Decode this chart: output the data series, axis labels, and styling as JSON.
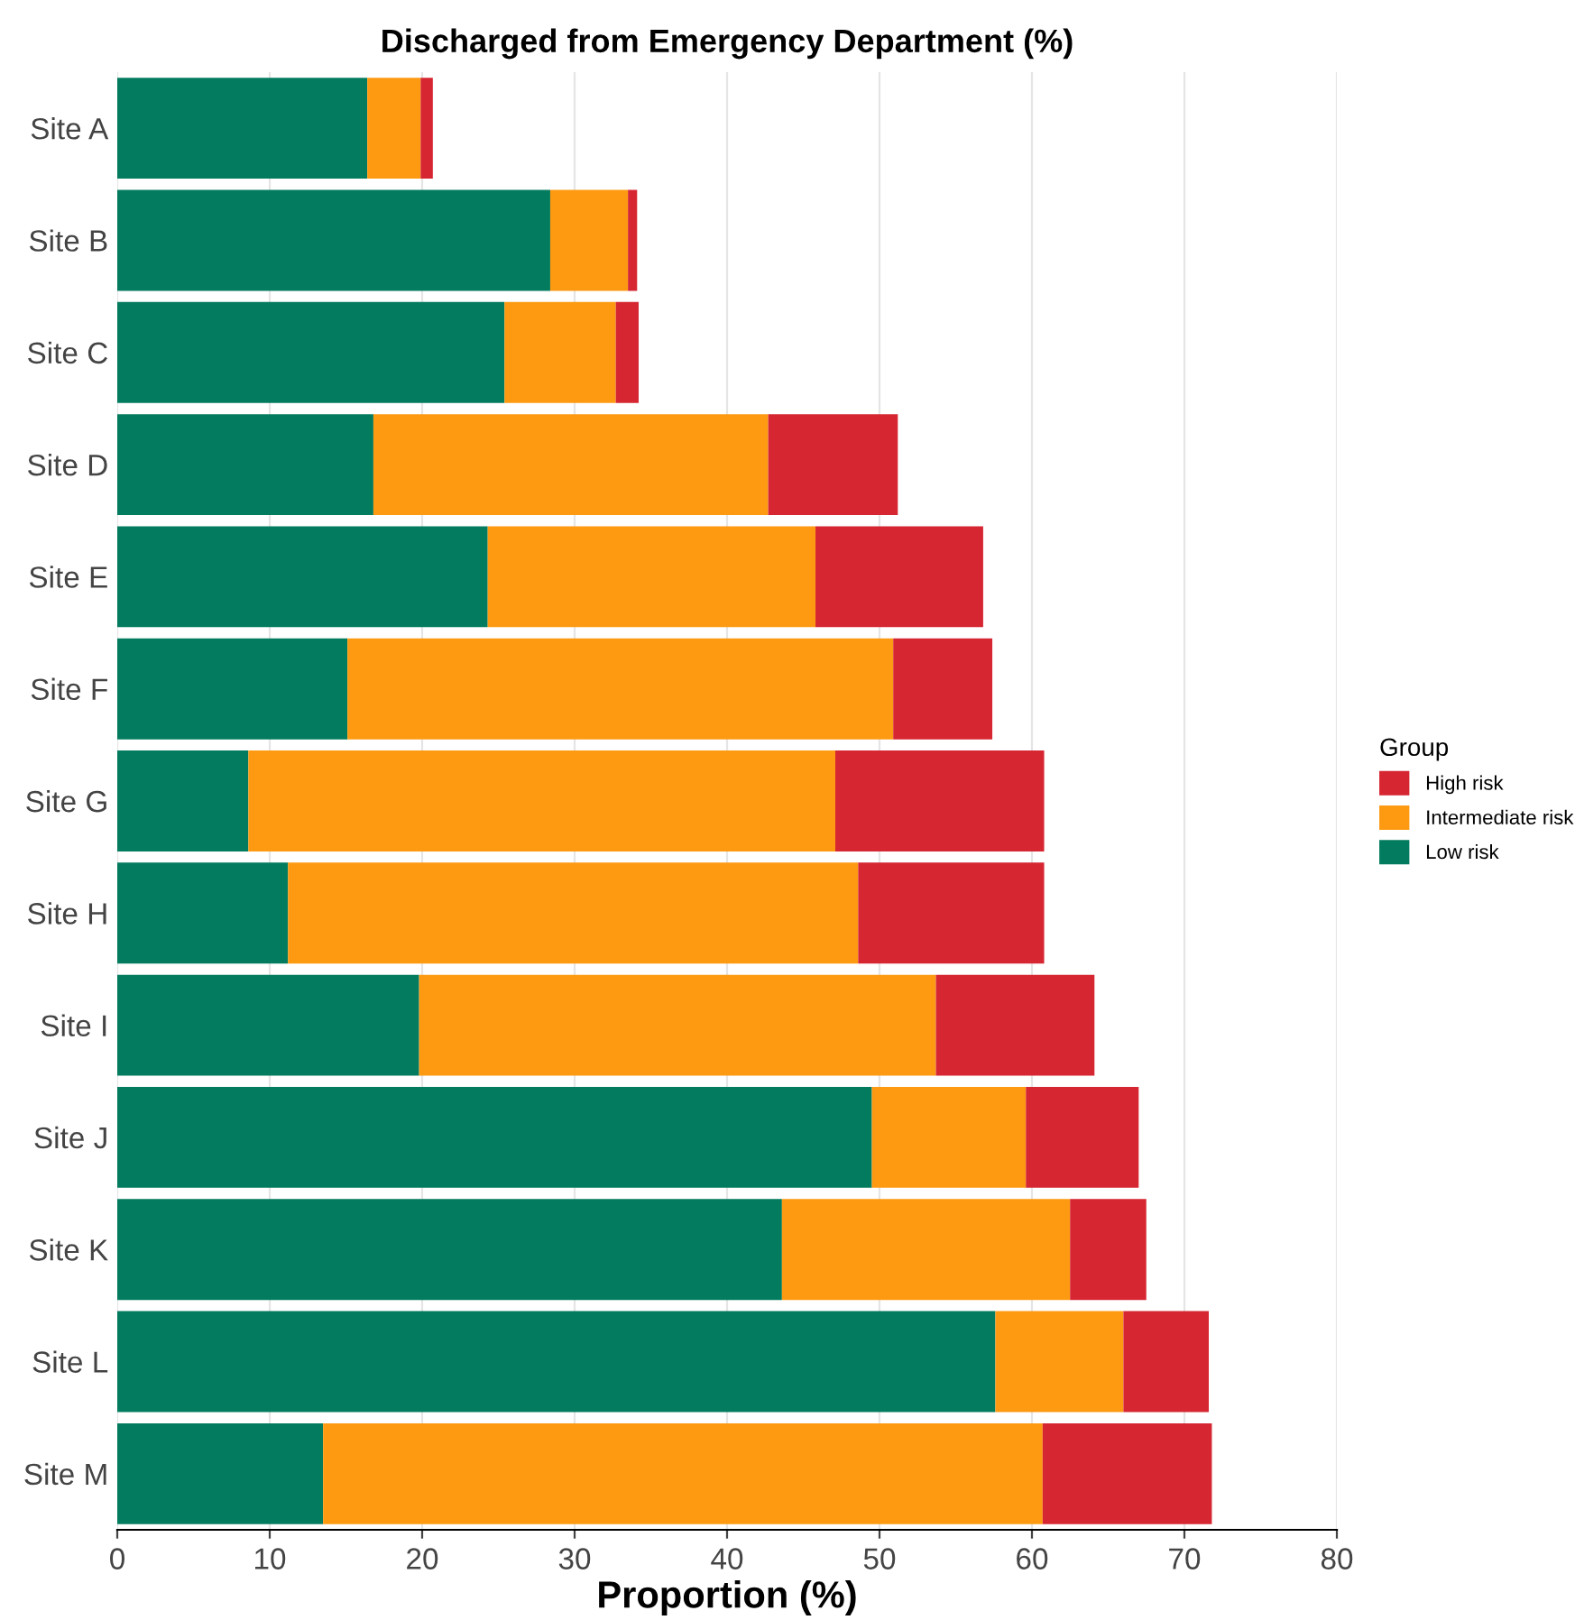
{
  "chart_data": {
    "type": "bar",
    "orientation": "horizontal",
    "stacked": true,
    "title": "Discharged from Emergency Department (%)",
    "xlabel": "Proportion (%)",
    "legend_title": "Group",
    "legend": "right",
    "grid": "x",
    "categories": [
      "Site A",
      "Site B",
      "Site C",
      "Site D",
      "Site E",
      "Site F",
      "Site G",
      "Site H",
      "Site I",
      "Site J",
      "Site K",
      "Site L",
      "Site M"
    ],
    "xlim": [
      0,
      80
    ],
    "xticks": [
      0,
      10,
      20,
      30,
      40,
      50,
      60,
      70,
      80
    ],
    "series": [
      {
        "name": "Low risk",
        "color": "#037b5e",
        "values": [
          16.4,
          28.4,
          25.4,
          16.8,
          24.3,
          15.1,
          8.6,
          11.2,
          19.8,
          49.5,
          43.6,
          57.6,
          13.5
        ]
      },
      {
        "name": "Intermediate risk",
        "color": "#fd9a12",
        "values": [
          3.5,
          5.1,
          7.3,
          25.9,
          21.5,
          35.8,
          38.5,
          37.4,
          33.9,
          10.1,
          18.9,
          8.4,
          47.2
        ]
      },
      {
        "name": "High risk",
        "color": "#d62631",
        "values": [
          0.8,
          0.6,
          1.5,
          8.5,
          11.0,
          6.5,
          13.7,
          12.2,
          10.4,
          7.4,
          5.0,
          5.6,
          11.1
        ]
      }
    ]
  }
}
